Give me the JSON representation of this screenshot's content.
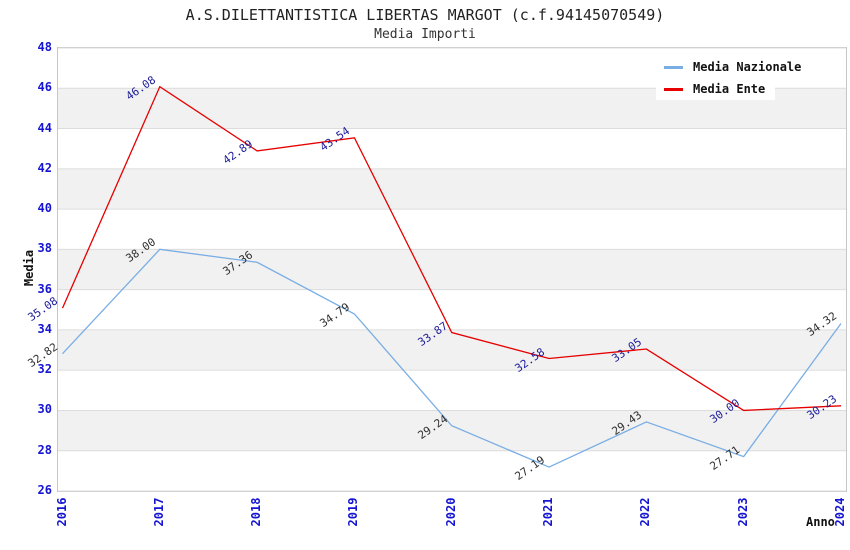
{
  "header": {
    "title": "A.S.DILETTANTISTICA LIBERTAS MARGOT (c.f.94145070549)",
    "subtitle": "Media Importi"
  },
  "axes": {
    "y_label": "Media",
    "x_label": "Anno"
  },
  "colors": {
    "tick": "#1414d2",
    "grid": "#dcdcdc",
    "band": "#f1f1f1",
    "plot_border": "#c6c6c6",
    "background": "#ffffff",
    "nazionale_line": "#79aee4",
    "ente_line": "#e60000",
    "nazionale_label": "#2e2e2e",
    "ente_label": "#1c1c9a"
  },
  "chart_data": {
    "type": "line",
    "title": "A.S.DILETTANTISTICA LIBERTAS MARGOT (c.f.94145070549)",
    "subtitle": "Media Importi",
    "xlabel": "Anno",
    "ylabel": "Media",
    "x": [
      "2016",
      "2017",
      "2018",
      "2019",
      "2020",
      "2021",
      "2022",
      "2023",
      "2024"
    ],
    "y_ticks": [
      48,
      46,
      44,
      42,
      40,
      38,
      36,
      34,
      32,
      30,
      28,
      26
    ],
    "ylim": [
      26,
      48
    ],
    "grid": "horizontal-bands-alternating",
    "legend_position": "top-right",
    "series": [
      {
        "name": "Media Nazionale",
        "color": "#79aee4",
        "label_color": "#2e2e2e",
        "values": [
          32.82,
          38.0,
          37.36,
          34.79,
          29.24,
          27.19,
          29.43,
          27.71,
          34.32
        ]
      },
      {
        "name": "Media Ente",
        "color": "#e60000",
        "label_color": "#1c1c9a",
        "values": [
          35.08,
          46.08,
          42.89,
          43.54,
          33.87,
          32.58,
          33.05,
          30.0,
          30.23
        ]
      }
    ]
  }
}
